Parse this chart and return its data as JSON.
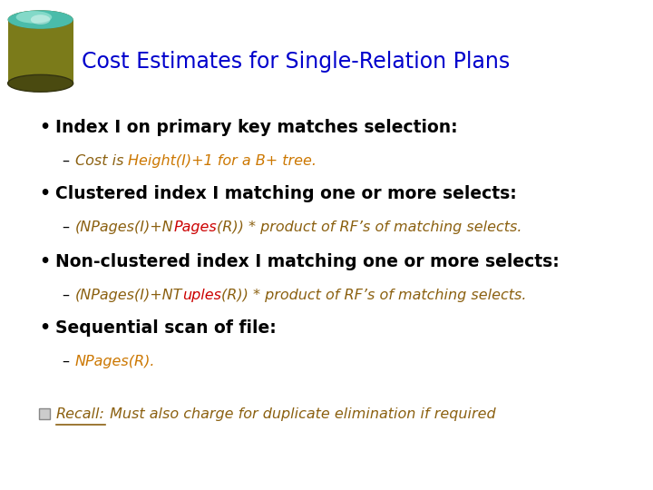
{
  "title": "Cost Estimates for Single-Relation Plans",
  "title_color": "#0000CC",
  "background_color": "#FFFFFF",
  "bullet_color": "#000000",
  "bullet1_bold": "Index I on primary key matches selection:",
  "bullet2_bold": "Clustered index I matching one or more selects:",
  "bullet3_bold": "Non-clustered index I matching one or more selects:",
  "bullet4_bold": "Sequential scan of file:",
  "sub1_pre": "Cost is ",
  "sub1_hi": "Height(I)+1 for a B+ tree.",
  "sub1_pre_color": "#8B6010",
  "sub1_hi_color": "#CC7700",
  "sub2_pre": "(NPages(I)+N",
  "sub2_hi": "Pages",
  "sub2_post": "(R)) * product of RF’s of matching selects.",
  "sub2_color": "#8B6010",
  "sub2_hi_color": "#CC0000",
  "sub3_pre": "(NPages(I)+NT",
  "sub3_hi": "uples",
  "sub3_post": "(R)) * product of RF’s of matching selects.",
  "sub3_color": "#8B6010",
  "sub3_hi_color": "#CC0000",
  "sub4_text": "NPages(R).",
  "sub4_color": "#CC7700",
  "recall_label": "Recall:",
  "recall_text": " Must also charge for duplicate elimination if required",
  "recall_color": "#8B6010",
  "dash": "–",
  "bullet": "•"
}
